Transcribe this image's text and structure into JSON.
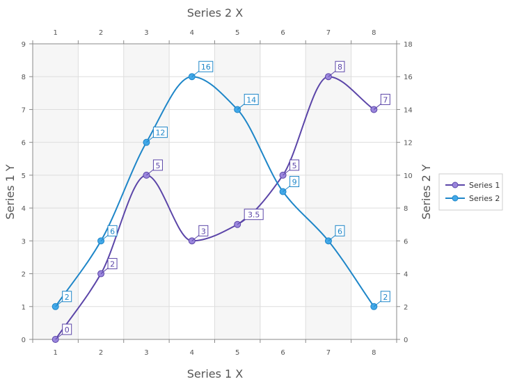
{
  "chart_data": {
    "type": "line",
    "interpolation": "smooth",
    "x_axis_bottom": {
      "title": "Series 1 X",
      "range": [
        0.5,
        8.5
      ],
      "ticks": [
        1,
        2,
        3,
        4,
        5,
        6,
        7,
        8
      ]
    },
    "x_axis_top": {
      "title": "Series 2 X",
      "range": [
        0.5,
        8.5
      ],
      "ticks": [
        1,
        2,
        3,
        4,
        5,
        6,
        7,
        8
      ]
    },
    "y_axis_left": {
      "title": "Series 1 Y",
      "range": [
        0,
        9
      ],
      "ticks": [
        0,
        1,
        2,
        3,
        4,
        5,
        6,
        7,
        8,
        9
      ]
    },
    "y_axis_right": {
      "title": "Series 2 Y",
      "range": [
        0,
        18
      ],
      "ticks": [
        0,
        2,
        4,
        6,
        8,
        10,
        12,
        14,
        16,
        18
      ]
    },
    "grid": true,
    "alternating_bands": true,
    "legend": {
      "placement": "right",
      "entries": [
        "Series 1",
        "Series 2"
      ]
    },
    "series": [
      {
        "name": "Series 1",
        "color": "#5b45a8",
        "marker_color": "#9a86dc",
        "axes": "bottom-left",
        "points": [
          {
            "x": 1,
            "y": 0,
            "label": "0"
          },
          {
            "x": 2,
            "y": 2,
            "label": "2"
          },
          {
            "x": 3,
            "y": 5,
            "label": "5"
          },
          {
            "x": 4,
            "y": 3,
            "label": "3"
          },
          {
            "x": 5,
            "y": 3.5,
            "label": "3.5"
          },
          {
            "x": 6,
            "y": 5,
            "label": "5"
          },
          {
            "x": 7,
            "y": 8,
            "label": "8"
          },
          {
            "x": 8,
            "y": 7,
            "label": "7"
          }
        ]
      },
      {
        "name": "Series 2",
        "color": "#1e86c8",
        "marker_color": "#42a8e8",
        "axes": "top-right",
        "points": [
          {
            "x": 1,
            "y": 2,
            "label": "2"
          },
          {
            "x": 2,
            "y": 6,
            "label": "6"
          },
          {
            "x": 3,
            "y": 12,
            "label": "12"
          },
          {
            "x": 4,
            "y": 16,
            "label": "16"
          },
          {
            "x": 5,
            "y": 14,
            "label": "14"
          },
          {
            "x": 6,
            "y": 9,
            "label": "9"
          },
          {
            "x": 7,
            "y": 6,
            "label": "6"
          },
          {
            "x": 8,
            "y": 2,
            "label": "2"
          }
        ]
      }
    ]
  }
}
